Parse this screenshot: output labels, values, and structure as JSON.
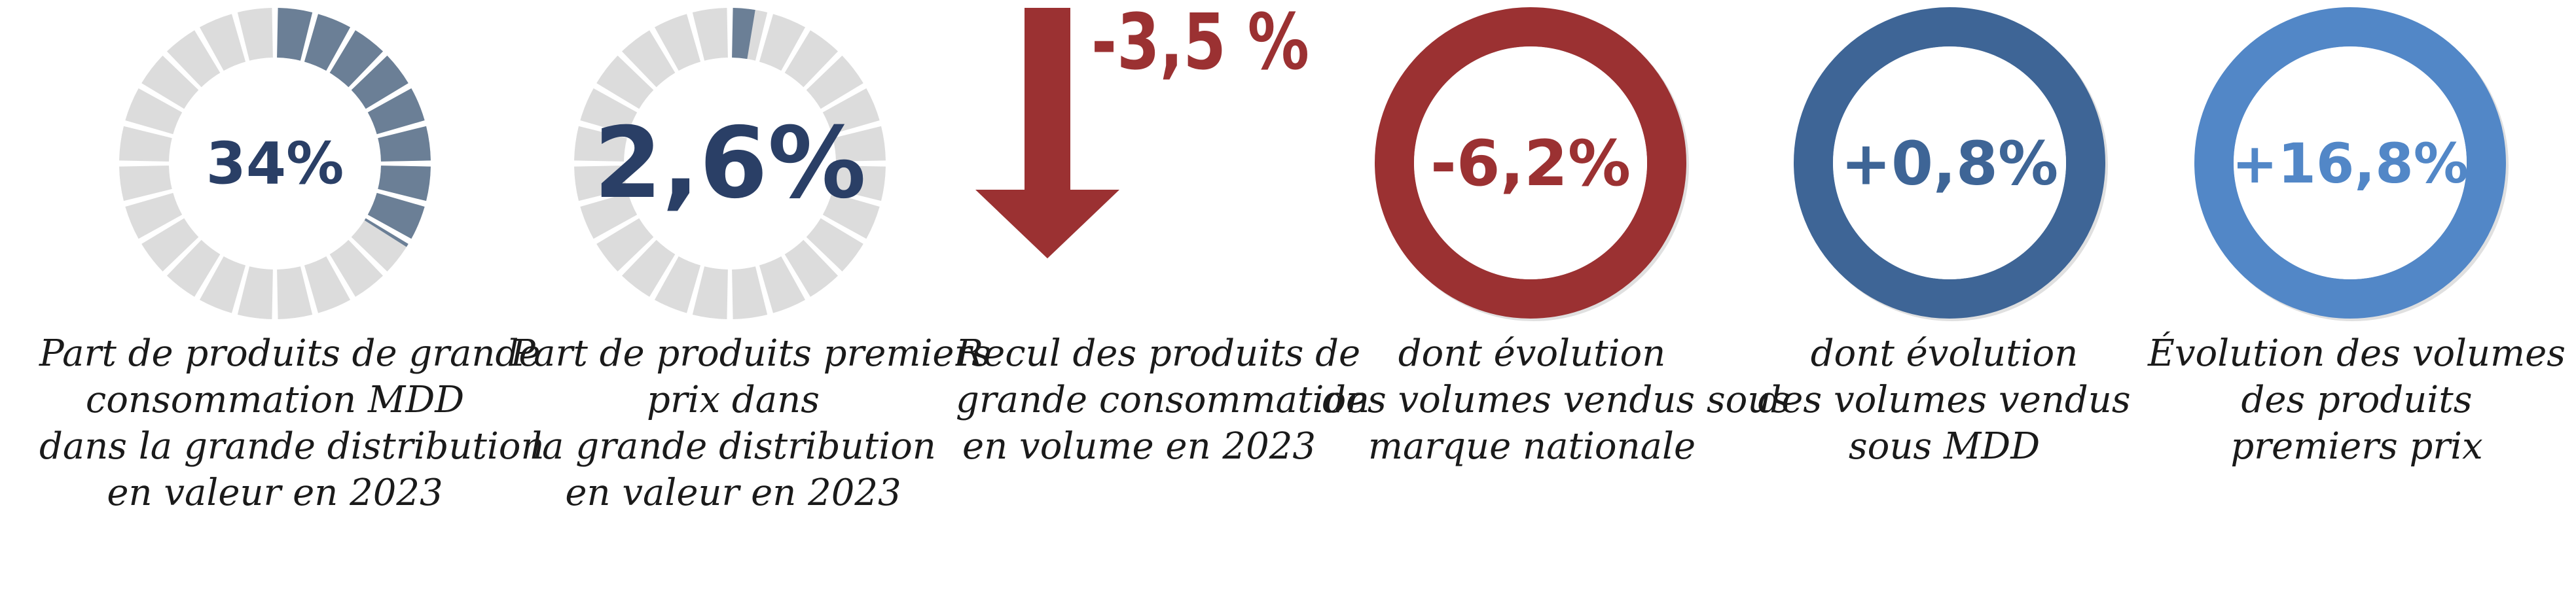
{
  "colors": {
    "slate": "#6b7f96",
    "light_gray": "#dcdcdc",
    "navy_text": "#2a3f66",
    "dark_red": "#9b3132",
    "mid_blue": "#3e6596",
    "light_blue": "#5287c7"
  },
  "stats": [
    {
      "value": "34%",
      "share": 0.34,
      "caption_lines": [
        "Part de produits de grande",
        "consommation MDD",
        "dans la grande distribution",
        "en valeur en 2023"
      ]
    },
    {
      "value": "2,6%",
      "share": 0.026,
      "caption_lines": [
        "Part de produits premiers",
        "prix dans",
        "la grande distribution",
        "en valeur en 2023"
      ]
    },
    {
      "value": "-3,5 %",
      "icon": "down-arrow-icon",
      "caption_lines": [
        "Recul des produits de",
        "grande consommation",
        "en volume en 2023"
      ]
    },
    {
      "value": "-6,2%",
      "caption_lines": [
        "dont évolution",
        "des volumes vendus sous",
        "marque nationale"
      ]
    },
    {
      "value": "+0,8%",
      "caption_lines": [
        "dont évolution",
        "des volumes vendus",
        "sous MDD"
      ]
    },
    {
      "value": "+16,8%",
      "caption_lines": [
        "Évolution des volumes",
        "des produits",
        "premiers prix"
      ]
    }
  ]
}
